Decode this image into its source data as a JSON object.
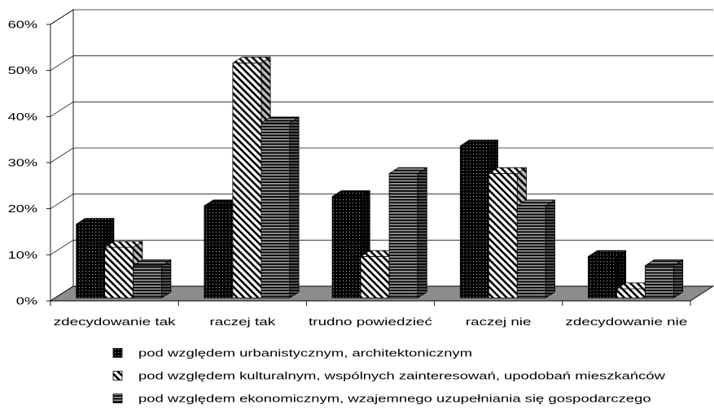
{
  "chart_data": {
    "type": "bar",
    "three_d": true,
    "categories": [
      "zdecydowanie tak",
      "raczej tak",
      "trudno powiedzieć",
      "raczej nie",
      "zdecydowanie nie"
    ],
    "series": [
      {
        "name": "pod względem urbanistycznym, architektonicznym",
        "values": [
          16,
          20,
          22,
          33,
          9
        ],
        "pattern": "dots"
      },
      {
        "name": "pod względem kulturalnym, wspólnych zainteresowań, upodobań mieszkańców",
        "values": [
          11,
          51,
          9,
          27,
          2
        ],
        "pattern": "diagonal-hatch"
      },
      {
        "name": "pod względem ekonomicznym, wzajemnego uzupełniania się gospodarczego",
        "values": [
          7,
          38,
          27,
          20,
          7
        ],
        "pattern": "horizontal-stripes"
      }
    ],
    "ylim": [
      0,
      60
    ],
    "y_ticks": [
      0,
      10,
      20,
      30,
      40,
      50,
      60
    ],
    "y_tick_labels": [
      "0%",
      "10%",
      "20%",
      "30%",
      "40%",
      "50%",
      "60%"
    ],
    "grid": true,
    "legend_position": "bottom",
    "colors": {
      "floor": "#8c8c8c",
      "walls": "#ffffff",
      "gridline": "#1a1a1a",
      "outline": "#000000"
    }
  }
}
